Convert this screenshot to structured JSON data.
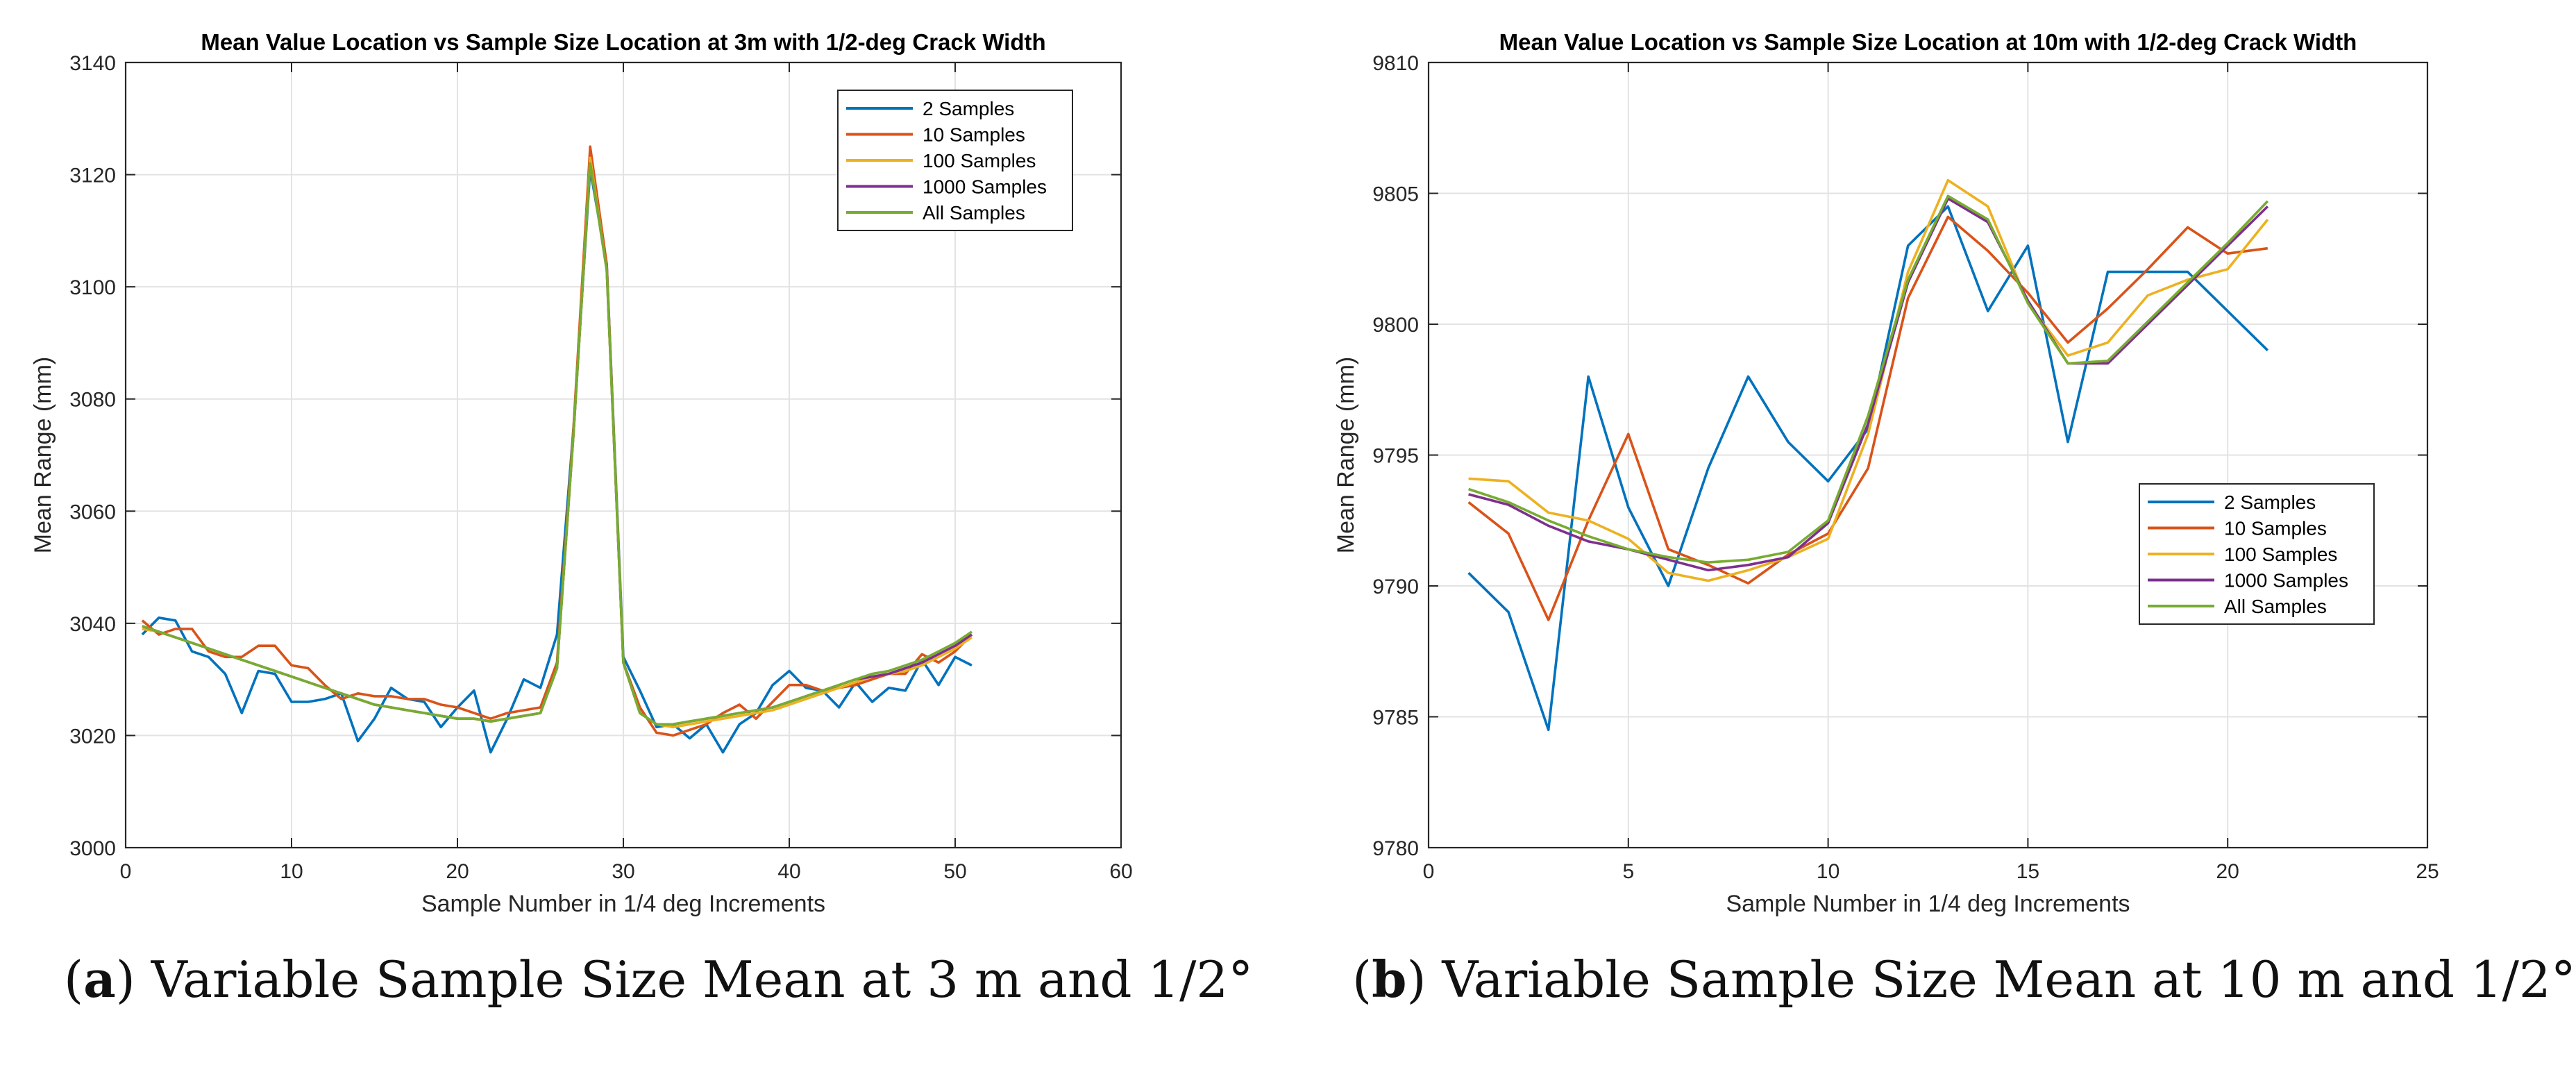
{
  "chart_data": [
    {
      "type": "line",
      "title": "Mean Value Location vs Sample Size Location at 3m with 1/2-deg Crack Width",
      "xlabel": "Sample Number in 1/4 deg Increments",
      "ylabel": "Mean Range (mm)",
      "xlim": [
        0,
        60
      ],
      "ylim": [
        3000,
        3140
      ],
      "xticks": [
        0,
        10,
        20,
        30,
        40,
        50,
        60
      ],
      "yticks": [
        3000,
        3020,
        3040,
        3060,
        3080,
        3100,
        3120,
        3140
      ],
      "grid": true,
      "legend_position": "top-right",
      "x": [
        1,
        2,
        3,
        4,
        5,
        6,
        7,
        8,
        9,
        10,
        11,
        12,
        13,
        14,
        15,
        16,
        17,
        18,
        19,
        20,
        21,
        22,
        23,
        24,
        25,
        26,
        27,
        28,
        29,
        30,
        31,
        32,
        33,
        34,
        35,
        36,
        37,
        38,
        39,
        40,
        41,
        42,
        43,
        44,
        45,
        46,
        47,
        48,
        49,
        50,
        51
      ],
      "series": [
        {
          "name": "2 Samples",
          "color": "#0072BD",
          "values": [
            3038,
            3041,
            3040.5,
            3035,
            3034,
            3031,
            3024,
            3031.5,
            3031,
            3026,
            3026,
            3026.5,
            3027.5,
            3019,
            3023,
            3028.5,
            3026.5,
            3026,
            3021.5,
            3025,
            3028,
            3017,
            3023,
            3030,
            3028.5,
            3038,
            3075,
            3121,
            3104,
            3034,
            3028,
            3021.5,
            3022,
            3019.5,
            3022,
            3017,
            3022,
            3024,
            3029,
            3031.5,
            3028.5,
            3028,
            3025,
            3029.5,
            3026,
            3028.5,
            3028,
            3033.5,
            3029,
            3034,
            3032.5
          ]
        },
        {
          "name": "10 Samples",
          "color": "#D95319",
          "values": [
            3040.5,
            3038,
            3039,
            3039,
            3035,
            3034,
            3034,
            3036,
            3036,
            3032.5,
            3032,
            3029,
            3026.5,
            3027.5,
            3027,
            3027,
            3026.5,
            3026.5,
            3025.5,
            3025,
            3024,
            3023,
            3024,
            3024.5,
            3025,
            3033,
            3075,
            3125,
            3104,
            3033,
            3025,
            3020.5,
            3020,
            3021,
            3022,
            3024,
            3025.5,
            3023,
            3026,
            3029,
            3029,
            3028,
            3028.5,
            3029,
            3030,
            3031,
            3031,
            3034.5,
            3033,
            3035,
            3038
          ]
        },
        {
          "name": "100 Samples",
          "color": "#EDB120",
          "values": [
            3039,
            3038.5,
            3037.5,
            3036.5,
            3035.5,
            3034.5,
            3033.5,
            3032.5,
            3031.5,
            3030.5,
            3029.5,
            3028.5,
            3027.5,
            3026.5,
            3025.5,
            3025,
            3024.5,
            3024,
            3023.5,
            3023,
            3023,
            3022.5,
            3023,
            3023.5,
            3024,
            3032,
            3074,
            3123,
            3103,
            3033,
            3024,
            3022,
            3021.5,
            3022,
            3022.5,
            3023,
            3023.5,
            3024,
            3024.5,
            3025.5,
            3026.5,
            3027.5,
            3028.5,
            3029.5,
            3030.5,
            3031,
            3031.5,
            3032.5,
            3034,
            3035.5,
            3037.5
          ]
        },
        {
          "name": " 1000 Samples",
          "color": "#7E2F8E",
          "values": [
            3039.5,
            3038.5,
            3037.5,
            3036.5,
            3035.5,
            3034.5,
            3033.5,
            3032.5,
            3031.5,
            3030.5,
            3029.5,
            3028.5,
            3027.5,
            3026.5,
            3025.5,
            3025,
            3024.5,
            3024,
            3023.5,
            3023,
            3023,
            3022.5,
            3023,
            3023.5,
            3024,
            3032,
            3074,
            3122,
            3103,
            3033,
            3024,
            3022,
            3022,
            3022.5,
            3023,
            3023.5,
            3024,
            3024.5,
            3025,
            3026,
            3027,
            3028,
            3029,
            3030,
            3030.5,
            3031,
            3032,
            3033,
            3034.5,
            3036,
            3038
          ]
        },
        {
          "name": "All Samples",
          "color": "#77AC30",
          "values": [
            3039.5,
            3038.5,
            3037.5,
            3036.5,
            3035.5,
            3034.5,
            3033.5,
            3032.5,
            3031.5,
            3030.5,
            3029.5,
            3028.5,
            3027.5,
            3026.5,
            3025.5,
            3025,
            3024.5,
            3024,
            3023.5,
            3023,
            3023,
            3022.5,
            3023,
            3023.5,
            3024,
            3032,
            3074,
            3122,
            3103,
            3033,
            3024,
            3022,
            3022,
            3022.5,
            3023,
            3023.5,
            3024,
            3024.5,
            3025,
            3026,
            3027,
            3028,
            3029,
            3030,
            3031,
            3031.5,
            3032.5,
            3033.5,
            3035,
            3036.5,
            3038.5
          ]
        }
      ]
    },
    {
      "type": "line",
      "title": "Mean Value Location vs Sample Size Location at 10m with 1/2-deg Crack Width",
      "xlabel": "Sample Number in 1/4 deg Increments",
      "ylabel": "Mean Range (mm)",
      "xlim": [
        0,
        25
      ],
      "ylim": [
        9780,
        9810
      ],
      "xticks": [
        0,
        5,
        10,
        15,
        20,
        25
      ],
      "yticks": [
        9780,
        9785,
        9790,
        9795,
        9800,
        9805,
        9810
      ],
      "grid": true,
      "legend_position": "right",
      "x": [
        1,
        2,
        3,
        4,
        5,
        6,
        7,
        8,
        9,
        10,
        11,
        12,
        13,
        14,
        15,
        16,
        17,
        18,
        19,
        20,
        21
      ],
      "series": [
        {
          "name": "2 Samples",
          "color": "#0072BD",
          "values": [
            9790.5,
            9789,
            9784.5,
            9798,
            9793,
            9790,
            9794.5,
            9798,
            9795.5,
            9794,
            9796,
            9803,
            9804.5,
            9800.5,
            9803,
            9795.5,
            9802,
            9802,
            9802,
            9800.5,
            9799
          ]
        },
        {
          "name": "10 Samples",
          "color": "#D95319",
          "values": [
            9793.2,
            9792,
            9788.7,
            9792.5,
            9795.8,
            9791.4,
            9790.8,
            9790.1,
            9791.2,
            9792,
            9794.5,
            9801,
            9804.1,
            9802.8,
            9801.2,
            9799.3,
            9800.6,
            9802.1,
            9803.7,
            9802.7,
            9802.9
          ]
        },
        {
          "name": "100 Samples",
          "color": "#EDB120",
          "values": [
            9794.1,
            9794,
            9792.8,
            9792.5,
            9791.8,
            9790.5,
            9790.2,
            9790.6,
            9791.1,
            9791.8,
            9795.8,
            9802,
            9805.5,
            9804.5,
            9800.8,
            9798.8,
            9799.3,
            9801.1,
            9801.7,
            9802.1,
            9804
          ]
        },
        {
          "name": " 1000 Samples",
          "color": "#7E2F8E",
          "values": [
            9793.5,
            9793.1,
            9792.3,
            9791.7,
            9791.4,
            9791,
            9790.6,
            9790.8,
            9791.1,
            9792.4,
            9796.2,
            9801.6,
            9804.8,
            9803.9,
            9800.9,
            9798.5,
            9798.5,
            9800,
            9801.5,
            9803,
            9804.5
          ]
        },
        {
          "name": "All Samples",
          "color": "#77AC30",
          "values": [
            9793.7,
            9793.2,
            9792.5,
            9791.9,
            9791.4,
            9791.1,
            9790.9,
            9791,
            9791.3,
            9792.5,
            9796.5,
            9801.7,
            9804.9,
            9804,
            9800.8,
            9798.5,
            9798.6,
            9800.1,
            9801.6,
            9803.1,
            9804.7
          ]
        }
      ]
    }
  ],
  "captions": [
    {
      "letter": "a",
      "prefix": "(",
      "suffix": ") Variable Sample Size Mean at 3 m and 1/2°"
    },
    {
      "letter": "b",
      "prefix": "(",
      "suffix": ") Variable Sample Size Mean at 10 m and 1/2°"
    }
  ]
}
